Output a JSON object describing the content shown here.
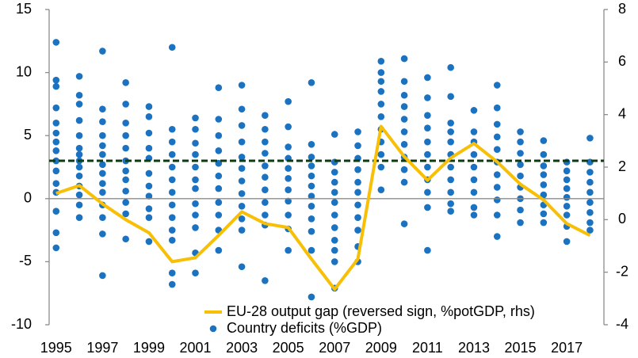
{
  "chart_data": {
    "type": "combo",
    "x": [
      1995,
      1996,
      1997,
      1998,
      1999,
      2000,
      2001,
      2002,
      2003,
      2004,
      2005,
      2006,
      2007,
      2008,
      2009,
      2010,
      2011,
      2012,
      2013,
      2014,
      2015,
      2016,
      2017,
      2018
    ],
    "xlim": [
      1994.7,
      2018.6
    ],
    "xticks": [
      1995,
      1997,
      1999,
      2001,
      2003,
      2005,
      2007,
      2009,
      2011,
      2013,
      2015,
      2017
    ],
    "ylim": [
      -10,
      15
    ],
    "yticks": [
      -10,
      -5,
      0,
      5,
      10,
      15
    ],
    "y2lim": [
      -4,
      8
    ],
    "y2ticks": [
      -4,
      -2,
      0,
      2,
      4,
      6,
      8
    ],
    "reference_line": {
      "value": 3,
      "color": "#0d3b12"
    },
    "legend": "bottom",
    "series": [
      {
        "name": "EU-28 output gap (reversed sign, %potGDP, rhs)",
        "type": "line",
        "axis": "y2",
        "color": "#f7bf05",
        "values": [
          1.0,
          1.3,
          0.6,
          0.0,
          -0.5,
          -1.6,
          -1.45,
          -0.6,
          0.3,
          -0.15,
          -0.3,
          -1.5,
          -2.65,
          -1.5,
          3.55,
          2.4,
          1.5,
          2.35,
          2.9,
          2.2,
          1.35,
          0.75,
          -0.15,
          -0.6
        ]
      },
      {
        "name": "Country deficits (%GDP)",
        "type": "scatter",
        "color": "#1a72c0",
        "values": [
          [
            12.4,
            9.4,
            8.9,
            7.2,
            6.0,
            5.2,
            4.5,
            3.8,
            3.0,
            2.2,
            1.2,
            0.5,
            -1.0,
            -2.7,
            -3.9
          ],
          [
            9.7,
            8.2,
            7.5,
            6.2,
            5.0,
            4.0,
            3.5,
            3.0,
            2.5,
            1.8,
            1.0,
            0.3,
            -0.5,
            -1.5
          ],
          [
            11.7,
            7.1,
            6.1,
            5.0,
            4.2,
            3.5,
            2.7,
            2.0,
            1.2,
            0.5,
            -0.5,
            -1.5,
            -2.8,
            -6.1
          ],
          [
            9.2,
            7.5,
            6.0,
            5.0,
            4.0,
            3.0,
            2.2,
            1.5,
            0.6,
            -0.3,
            -1.2,
            -3.2
          ],
          [
            7.3,
            6.5,
            5.2,
            4.0,
            3.2,
            2.0,
            1.0,
            0.2,
            -0.8,
            -1.5,
            -3.4
          ],
          [
            12.0,
            5.5,
            4.5,
            3.5,
            2.5,
            1.5,
            0.5,
            -0.5,
            -1.5,
            -2.5,
            -3.3,
            -5.9,
            -6.8
          ],
          [
            6.4,
            5.5,
            4.4,
            3.5,
            2.5,
            1.5,
            0.8,
            -0.4,
            -1.3,
            -2.3,
            -4.3,
            -5.9
          ],
          [
            8.8,
            6.3,
            5.0,
            3.8,
            2.8,
            1.8,
            0.8,
            -0.3,
            -1.3,
            -2.5,
            -4.1
          ],
          [
            9.0,
            7.1,
            5.8,
            4.5,
            3.3,
            2.4,
            1.4,
            0.4,
            -0.6,
            -1.6,
            -2.5,
            -5.4
          ],
          [
            6.6,
            5.5,
            4.5,
            3.6,
            2.6,
            1.7,
            0.7,
            -0.3,
            -1.3,
            -2.1,
            -6.5
          ],
          [
            7.7,
            5.7,
            4.1,
            3.2,
            2.4,
            1.6,
            0.7,
            -0.2,
            -1.3,
            -2.4,
            -4.1
          ],
          [
            9.2,
            4.3,
            3.3,
            2.6,
            1.8,
            1.0,
            0.2,
            -0.6,
            -1.6,
            -2.6,
            -4.1,
            -7.8
          ],
          [
            5.1,
            2.9,
            2.1,
            1.3,
            0.5,
            -0.3,
            -1.3,
            -2.3,
            -3.3,
            -4.1,
            -5.0,
            -7.1
          ],
          [
            5.3,
            4.2,
            3.2,
            2.3,
            1.3,
            0.5,
            -0.5,
            -1.5,
            -2.5,
            -3.8,
            -5.0
          ],
          [
            10.9,
            10.0,
            9.3,
            8.5,
            7.5,
            6.5,
            5.5,
            4.5,
            3.5,
            2.5,
            0.7
          ],
          [
            11.1,
            9.3,
            8.2,
            7.3,
            6.3,
            5.3,
            4.3,
            3.3,
            2.3,
            1.3,
            -2.0
          ],
          [
            9.6,
            8.0,
            6.6,
            5.6,
            4.5,
            3.5,
            2.5,
            1.5,
            0.5,
            -0.7,
            -4.1
          ],
          [
            10.4,
            8.1,
            6.0,
            5.3,
            4.5,
            3.5,
            2.5,
            1.5,
            0.5,
            -0.4,
            -1.0
          ],
          [
            7.0,
            5.3,
            4.5,
            3.5,
            2.5,
            1.5,
            0.5,
            -0.7,
            -1.3
          ],
          [
            9.0,
            7.2,
            5.9,
            4.9,
            3.9,
            2.9,
            1.9,
            0.9,
            -0.1,
            -1.3,
            -3.0
          ],
          [
            5.3,
            4.5,
            3.6,
            2.7,
            1.8,
            0.9,
            0.0,
            -0.9,
            -1.9
          ],
          [
            4.6,
            3.5,
            2.6,
            1.9,
            1.1,
            0.3,
            -0.5,
            -1.2,
            -1.9
          ],
          [
            2.9,
            2.2,
            1.5,
            0.8,
            0.1,
            -0.6,
            -1.3,
            -2.2,
            -3.4
          ],
          [
            4.8,
            2.9,
            2.1,
            1.3,
            0.5,
            -0.3,
            -1.1,
            -1.9,
            -2.5
          ]
        ]
      }
    ]
  }
}
